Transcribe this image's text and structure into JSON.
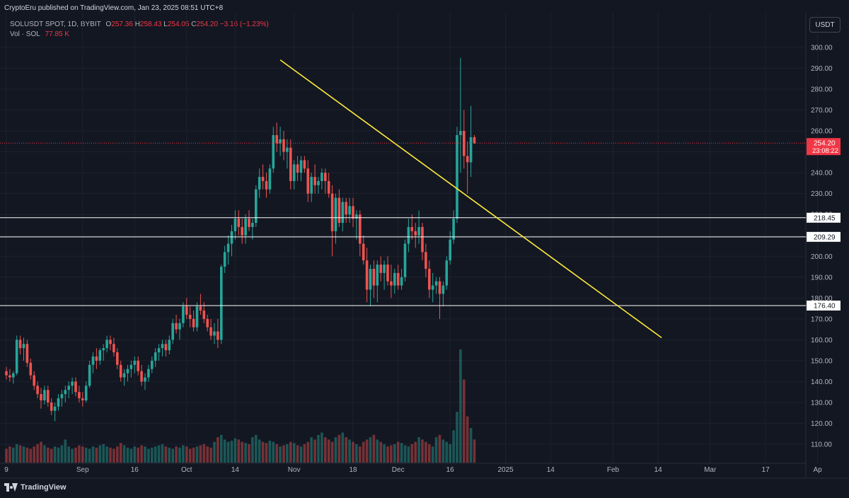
{
  "header": {
    "text": "CryptoEru published on TradingView.com, Jan 23, 2025 08:51 UTC+8"
  },
  "legend": {
    "symbol": "SOLUSDT SPOT, 1D, BYBIT",
    "o_label": "O",
    "o": "257.36",
    "h_label": "H",
    "h": "258.43",
    "l_label": "L",
    "l": "254.05",
    "c_label": "C",
    "c": "254.20",
    "change": "−3.16 (−1.23%)",
    "vol_label": "Vol · SOL",
    "vol_value": "77.85",
    "vol_unit": "K"
  },
  "currency": "USDT",
  "footer": {
    "brand": "TradingView"
  },
  "colors": {
    "up": "#26a69a",
    "down": "#ef5350",
    "trendline": "#ffeb3b",
    "level": "#ffffff",
    "price_line": "#f23645",
    "bg": "#131722"
  },
  "chart_data": {
    "type": "candlestick",
    "ylim": [
      100,
      305
    ],
    "y_ticks": [
      110,
      120,
      130,
      140,
      150,
      160,
      170,
      180,
      190,
      200,
      210,
      220,
      230,
      240,
      250,
      260,
      270,
      280,
      290,
      300
    ],
    "x_ticks": [
      {
        "label": "9",
        "day": 0
      },
      {
        "label": "Sep",
        "day": 22
      },
      {
        "label": "16",
        "day": 37
      },
      {
        "label": "Oct",
        "day": 52
      },
      {
        "label": "14",
        "day": 66
      },
      {
        "label": "Nov",
        "day": 83
      },
      {
        "label": "18",
        "day": 100
      },
      {
        "label": "Dec",
        "day": 113
      },
      {
        "label": "16",
        "day": 128
      },
      {
        "label": "2025",
        "day": 144
      },
      {
        "label": "14",
        "day": 157
      },
      {
        "label": "Feb",
        "day": 175
      },
      {
        "label": "14",
        "day": 188
      },
      {
        "label": "Mar",
        "day": 203
      },
      {
        "label": "17",
        "day": 219
      },
      {
        "label": "Ap",
        "day": 234
      }
    ],
    "current_price": {
      "value": 254.2,
      "label": "254.20",
      "countdown": "23:08:22"
    },
    "levels": [
      {
        "value": 218.45,
        "label": "218.45"
      },
      {
        "value": 209.29,
        "label": "209.29"
      },
      {
        "value": 176.4,
        "label": "176.40"
      }
    ],
    "trendline": {
      "start": {
        "day": 79,
        "value": 294
      },
      "end": {
        "day": 189,
        "value": 161
      }
    },
    "ohlc": [
      [
        145,
        147,
        141,
        143
      ],
      [
        143,
        146,
        140,
        142
      ],
      [
        142,
        145,
        139,
        144
      ],
      [
        144,
        162,
        143,
        160
      ],
      [
        160,
        162,
        153,
        156
      ],
      [
        156,
        161,
        150,
        158
      ],
      [
        158,
        160,
        147,
        149
      ],
      [
        149,
        151,
        141,
        143
      ],
      [
        143,
        145,
        136,
        138
      ],
      [
        138,
        140,
        132,
        134
      ],
      [
        134,
        137,
        127,
        131
      ],
      [
        131,
        138,
        129,
        136
      ],
      [
        136,
        138,
        128,
        130
      ],
      [
        130,
        132,
        124,
        126
      ],
      [
        126,
        130,
        121,
        128
      ],
      [
        128,
        134,
        126,
        132
      ],
      [
        132,
        136,
        128,
        134
      ],
      [
        134,
        138,
        130,
        136
      ],
      [
        136,
        140,
        132,
        138
      ],
      [
        138,
        142,
        134,
        140
      ],
      [
        140,
        142,
        133,
        135
      ],
      [
        135,
        138,
        130,
        132
      ],
      [
        132,
        135,
        128,
        131
      ],
      [
        131,
        140,
        130,
        138
      ],
      [
        138,
        150,
        137,
        148
      ],
      [
        148,
        154,
        144,
        152
      ],
      [
        152,
        156,
        146,
        150
      ],
      [
        150,
        156,
        148,
        155
      ],
      [
        155,
        158,
        150,
        156
      ],
      [
        156,
        162,
        154,
        160
      ],
      [
        160,
        162,
        155,
        158
      ],
      [
        158,
        161,
        152,
        154
      ],
      [
        154,
        156,
        146,
        148
      ],
      [
        148,
        150,
        140,
        142
      ],
      [
        142,
        146,
        138,
        144
      ],
      [
        144,
        148,
        140,
        146
      ],
      [
        146,
        150,
        142,
        148
      ],
      [
        148,
        152,
        144,
        150
      ],
      [
        150,
        152,
        143,
        145
      ],
      [
        145,
        148,
        138,
        140
      ],
      [
        140,
        144,
        136,
        142
      ],
      [
        142,
        148,
        140,
        146
      ],
      [
        146,
        152,
        144,
        150
      ],
      [
        150,
        156,
        147,
        154
      ],
      [
        154,
        158,
        150,
        156
      ],
      [
        156,
        160,
        152,
        158
      ],
      [
        158,
        160,
        152,
        155
      ],
      [
        155,
        162,
        153,
        160
      ],
      [
        160,
        170,
        158,
        168
      ],
      [
        168,
        172,
        163,
        165
      ],
      [
        165,
        170,
        160,
        168
      ],
      [
        168,
        178,
        166,
        176
      ],
      [
        176,
        180,
        170,
        172
      ],
      [
        172,
        176,
        166,
        170
      ],
      [
        170,
        174,
        164,
        166
      ],
      [
        166,
        178,
        164,
        176
      ],
      [
        176,
        182,
        172,
        174
      ],
      [
        174,
        178,
        168,
        170
      ],
      [
        170,
        172,
        164,
        166
      ],
      [
        166,
        170,
        160,
        162
      ],
      [
        162,
        168,
        158,
        164
      ],
      [
        164,
        170,
        156,
        160
      ],
      [
        160,
        196,
        158,
        195
      ],
      [
        195,
        205,
        192,
        202
      ],
      [
        202,
        210,
        196,
        206
      ],
      [
        206,
        215,
        200,
        212
      ],
      [
        212,
        222,
        208,
        218
      ],
      [
        218,
        222,
        210,
        214
      ],
      [
        214,
        218,
        206,
        210
      ],
      [
        210,
        220,
        206,
        218
      ],
      [
        218,
        222,
        212,
        214
      ],
      [
        214,
        218,
        208,
        216
      ],
      [
        216,
        234,
        214,
        232
      ],
      [
        232,
        242,
        228,
        238
      ],
      [
        238,
        244,
        232,
        236
      ],
      [
        236,
        240,
        228,
        232
      ],
      [
        232,
        244,
        230,
        242
      ],
      [
        242,
        262,
        240,
        258
      ],
      [
        258,
        264,
        250,
        254
      ],
      [
        254,
        262,
        248,
        256
      ],
      [
        256,
        260,
        246,
        250
      ],
      [
        250,
        256,
        242,
        252
      ],
      [
        252,
        256,
        232,
        236
      ],
      [
        236,
        246,
        232,
        244
      ],
      [
        244,
        248,
        236,
        240
      ],
      [
        240,
        248,
        236,
        246
      ],
      [
        246,
        248,
        240,
        242
      ],
      [
        242,
        246,
        226,
        230
      ],
      [
        230,
        240,
        226,
        238
      ],
      [
        238,
        244,
        230,
        234
      ],
      [
        234,
        238,
        230,
        236
      ],
      [
        236,
        242,
        232,
        240
      ],
      [
        240,
        242,
        230,
        236
      ],
      [
        236,
        240,
        228,
        230
      ],
      [
        230,
        234,
        200,
        212
      ],
      [
        212,
        230,
        206,
        228
      ],
      [
        228,
        232,
        214,
        216
      ],
      [
        216,
        228,
        212,
        226
      ],
      [
        226,
        228,
        216,
        220
      ],
      [
        220,
        228,
        216,
        224
      ],
      [
        224,
        228,
        214,
        218
      ],
      [
        218,
        222,
        208,
        220
      ],
      [
        220,
        222,
        200,
        206
      ],
      [
        206,
        210,
        196,
        198
      ],
      [
        198,
        204,
        178,
        184
      ],
      [
        184,
        196,
        176,
        194
      ],
      [
        194,
        198,
        180,
        186
      ],
      [
        186,
        198,
        178,
        196
      ],
      [
        196,
        200,
        188,
        192
      ],
      [
        192,
        198,
        184,
        196
      ],
      [
        196,
        200,
        186,
        188
      ],
      [
        188,
        196,
        180,
        186
      ],
      [
        186,
        194,
        182,
        192
      ],
      [
        192,
        196,
        184,
        186
      ],
      [
        186,
        194,
        184,
        190
      ],
      [
        190,
        208,
        188,
        206
      ],
      [
        206,
        218,
        202,
        214
      ],
      [
        214,
        220,
        208,
        212
      ],
      [
        212,
        216,
        204,
        210
      ],
      [
        210,
        222,
        206,
        214
      ],
      [
        214,
        216,
        198,
        202
      ],
      [
        202,
        206,
        190,
        194
      ],
      [
        194,
        198,
        180,
        184
      ],
      [
        184,
        192,
        178,
        186
      ],
      [
        186,
        190,
        182,
        188
      ],
      [
        188,
        190,
        170,
        182
      ],
      [
        182,
        188,
        176,
        186
      ],
      [
        186,
        200,
        184,
        198
      ],
      [
        198,
        212,
        196,
        208
      ],
      [
        208,
        222,
        206,
        218
      ],
      [
        218,
        262,
        216,
        258
      ],
      [
        258,
        295,
        240,
        260
      ],
      [
        260,
        270,
        242,
        248
      ],
      [
        248,
        255,
        230,
        245
      ],
      [
        245,
        272,
        238,
        257
      ],
      [
        257,
        258,
        254,
        254
      ]
    ],
    "volumes": [
      12,
      14,
      13,
      16,
      15,
      14,
      13,
      12,
      14,
      16,
      18,
      15,
      13,
      12,
      14,
      13,
      15,
      20,
      14,
      12,
      13,
      15,
      14,
      13,
      12,
      14,
      13,
      15,
      16,
      14,
      13,
      12,
      14,
      17,
      15,
      13,
      12,
      14,
      13,
      15,
      14,
      12,
      13,
      14,
      15,
      16,
      14,
      13,
      12,
      14,
      13,
      15,
      14,
      12,
      13,
      14,
      15,
      16,
      14,
      13,
      18,
      22,
      24,
      20,
      18,
      19,
      21,
      20,
      18,
      17,
      16,
      22,
      24,
      20,
      18,
      17,
      19,
      18,
      16,
      14,
      15,
      16,
      18,
      17,
      15,
      14,
      16,
      18,
      22,
      20,
      24,
      26,
      22,
      20,
      18,
      22,
      24,
      26,
      22,
      20,
      18,
      16,
      14,
      18,
      20,
      22,
      24,
      20,
      18,
      16,
      14,
      15,
      16,
      18,
      17,
      15,
      14,
      16,
      18,
      22,
      20,
      18,
      16,
      14,
      22,
      24,
      20,
      18,
      16,
      28,
      44,
      98,
      72,
      40,
      30,
      20
    ]
  }
}
